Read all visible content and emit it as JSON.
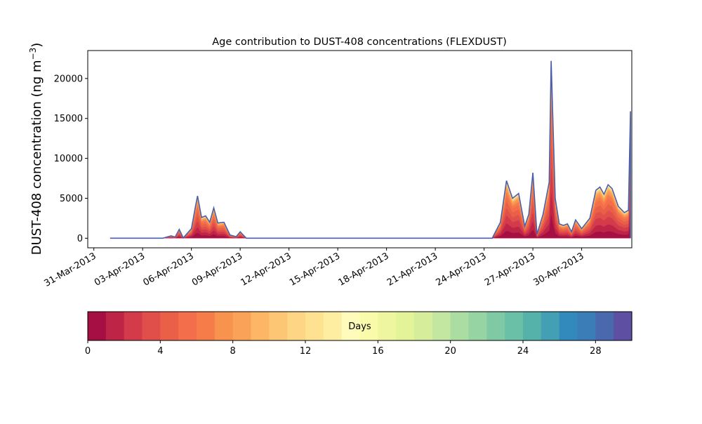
{
  "chart_data": {
    "type": "area",
    "title": "Age contribution to DUST-408 concentrations (FLEXDUST)",
    "ylabel_main": "DUST-408 concentration (ng m",
    "ylabel_sup": "−3",
    "ylabel_end": ")",
    "xlabel": "",
    "xlim": [
      "2013-03-30T15:00",
      "2013-05-03T02:00"
    ],
    "ylim": [
      -1200,
      23500
    ],
    "yticks": [
      0,
      5000,
      10000,
      15000,
      20000
    ],
    "ytick_labels": [
      "0",
      "5000",
      "10000",
      "15000",
      "20000"
    ],
    "xticks": [
      "2013-03-31",
      "2013-04-03",
      "2013-04-06",
      "2013-04-09",
      "2013-04-12",
      "2013-04-15",
      "2013-04-18",
      "2013-04-21",
      "2013-04-24",
      "2013-04-27",
      "2013-04-30"
    ],
    "xtick_labels": [
      "31-Mar-2013",
      "03-Apr-2013",
      "06-Apr-2013",
      "09-Apr-2013",
      "12-Apr-2013",
      "15-Apr-2013",
      "18-Apr-2013",
      "21-Apr-2013",
      "24-Apr-2013",
      "27-Apr-2013",
      "30-Apr-2013"
    ],
    "total": [
      [
        "2013-04-01T00:00",
        0
      ],
      [
        "2013-04-04T06:00",
        0
      ],
      [
        "2013-04-04T18:00",
        300
      ],
      [
        "2013-04-05T00:00",
        150
      ],
      [
        "2013-04-05T06:00",
        1100
      ],
      [
        "2013-04-05T12:00",
        50
      ],
      [
        "2013-04-06T00:00",
        1200
      ],
      [
        "2013-04-06T06:00",
        4000
      ],
      [
        "2013-04-06T09:00",
        5300
      ],
      [
        "2013-04-06T15:00",
        2600
      ],
      [
        "2013-04-06T21:00",
        2800
      ],
      [
        "2013-04-07T03:00",
        2000
      ],
      [
        "2013-04-07T09:00",
        3800
      ],
      [
        "2013-04-07T15:00",
        1900
      ],
      [
        "2013-04-08T00:00",
        2000
      ],
      [
        "2013-04-08T09:00",
        400
      ],
      [
        "2013-04-08T18:00",
        200
      ],
      [
        "2013-04-09T00:00",
        800
      ],
      [
        "2013-04-09T09:00",
        0
      ],
      [
        "2013-04-24T12:00",
        0
      ],
      [
        "2013-04-25T00:00",
        2000
      ],
      [
        "2013-04-25T09:00",
        7200
      ],
      [
        "2013-04-25T18:00",
        5000
      ],
      [
        "2013-04-26T03:00",
        5600
      ],
      [
        "2013-04-26T12:00",
        1500
      ],
      [
        "2013-04-26T18:00",
        3000
      ],
      [
        "2013-04-27T00:00",
        8200
      ],
      [
        "2013-04-27T06:00",
        500
      ],
      [
        "2013-04-27T15:00",
        3000
      ],
      [
        "2013-04-28T00:00",
        7000
      ],
      [
        "2013-04-28T03:00",
        22200
      ],
      [
        "2013-04-28T09:00",
        5000
      ],
      [
        "2013-04-28T15:00",
        1800
      ],
      [
        "2013-04-28T21:00",
        1600
      ],
      [
        "2013-04-29T03:00",
        1800
      ],
      [
        "2013-04-29T09:00",
        800
      ],
      [
        "2013-04-29T15:00",
        2300
      ],
      [
        "2013-04-30T00:00",
        1200
      ],
      [
        "2013-04-30T12:00",
        2500
      ],
      [
        "2013-04-30T21:00",
        6000
      ],
      [
        "2013-05-01T03:00",
        6400
      ],
      [
        "2013-05-01T09:00",
        5500
      ],
      [
        "2013-05-01T15:00",
        6700
      ],
      [
        "2013-05-01T21:00",
        6200
      ],
      [
        "2013-05-02T06:00",
        4000
      ],
      [
        "2013-05-02T15:00",
        3200
      ],
      [
        "2013-05-02T21:00",
        3500
      ],
      [
        "2013-05-03T00:00",
        15900
      ],
      [
        "2013-05-03T00:01",
        0
      ]
    ],
    "age_fractions": [
      0.13,
      0.13,
      0.14,
      0.12,
      0.12,
      0.1,
      0.07,
      0.05,
      0.04,
      0.025,
      0.02,
      0.015,
      0.01,
      0.01,
      0.005,
      0.005
    ],
    "colorbar": {
      "label": "Days",
      "min": 0,
      "max": 30,
      "ticks": [
        0,
        4,
        8,
        12,
        16,
        20,
        24,
        28
      ],
      "tick_labels": [
        "0",
        "4",
        "8",
        "12",
        "16",
        "20",
        "24",
        "28"
      ],
      "colors": [
        "#a50f44",
        "#be2446",
        "#d33a4a",
        "#e04f4a",
        "#e95f47",
        "#f36e4b",
        "#f67c4a",
        "#f8934f",
        "#fba259",
        "#fcb665",
        "#fdc674",
        "#fdd585",
        "#fee291",
        "#feeea1",
        "#fffcbb",
        "#f9fbaa",
        "#eef79f",
        "#e3f398",
        "#d6ee9b",
        "#c3e6a0",
        "#abdca2",
        "#96d4a4",
        "#7fcaa5",
        "#6ac0a7",
        "#55b2aa",
        "#429fb4",
        "#3289bc",
        "#3a7db7",
        "#4a68ad",
        "#5e4fa2"
      ]
    }
  }
}
